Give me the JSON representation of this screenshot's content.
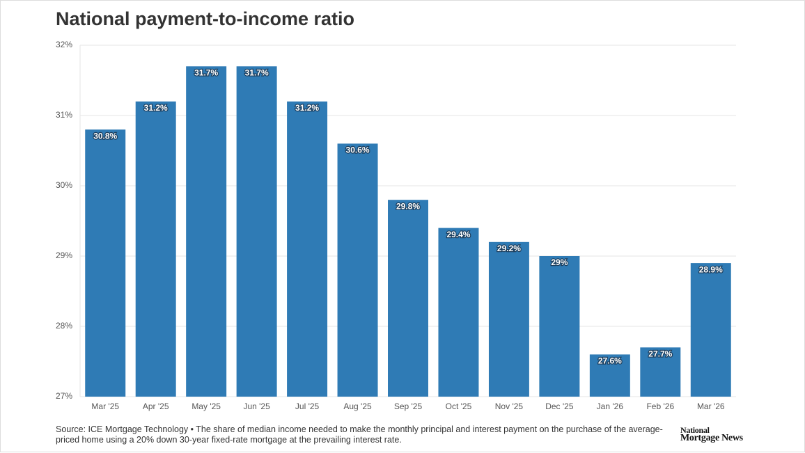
{
  "chart_data": {
    "type": "bar",
    "title": "National payment-to-income ratio",
    "categories": [
      "Mar '25",
      "Apr '25",
      "May '25",
      "Jun '25",
      "Jul '25",
      "Aug '25",
      "Sep '25",
      "Oct '25",
      "Nov '25",
      "Dec '25",
      "Jan '26",
      "Feb '26",
      "Mar '26"
    ],
    "values": [
      30.8,
      31.2,
      31.7,
      31.7,
      31.2,
      30.6,
      29.8,
      29.4,
      29.2,
      29,
      27.6,
      27.7,
      28.9
    ],
    "value_labels": [
      "30.8%",
      "31.2%",
      "31.7%",
      "31.7%",
      "31.2%",
      "30.6%",
      "29.8%",
      "29.4%",
      "29.2%",
      "29%",
      "27.6%",
      "27.7%",
      "28.9%"
    ],
    "color": "#2f7bb5",
    "ylim": [
      27,
      32
    ],
    "yticks": [
      {
        "value": 27,
        "label": "27%"
      },
      {
        "value": 28,
        "label": "28%"
      },
      {
        "value": 29,
        "label": "29%"
      },
      {
        "value": 30,
        "label": "30%"
      },
      {
        "value": 31,
        "label": "31%"
      },
      {
        "value": 32,
        "label": "32%"
      }
    ],
    "grid": true,
    "source": "Source: ICE Mortgage Technology • The share of median income needed to make the monthly principal and interest payment on the purchase of the average-priced home using a 20% down 30-year fixed-rate mortgage at the prevailing interest rate.",
    "logo": {
      "top": "National",
      "bottom": "Mortgage News"
    }
  }
}
